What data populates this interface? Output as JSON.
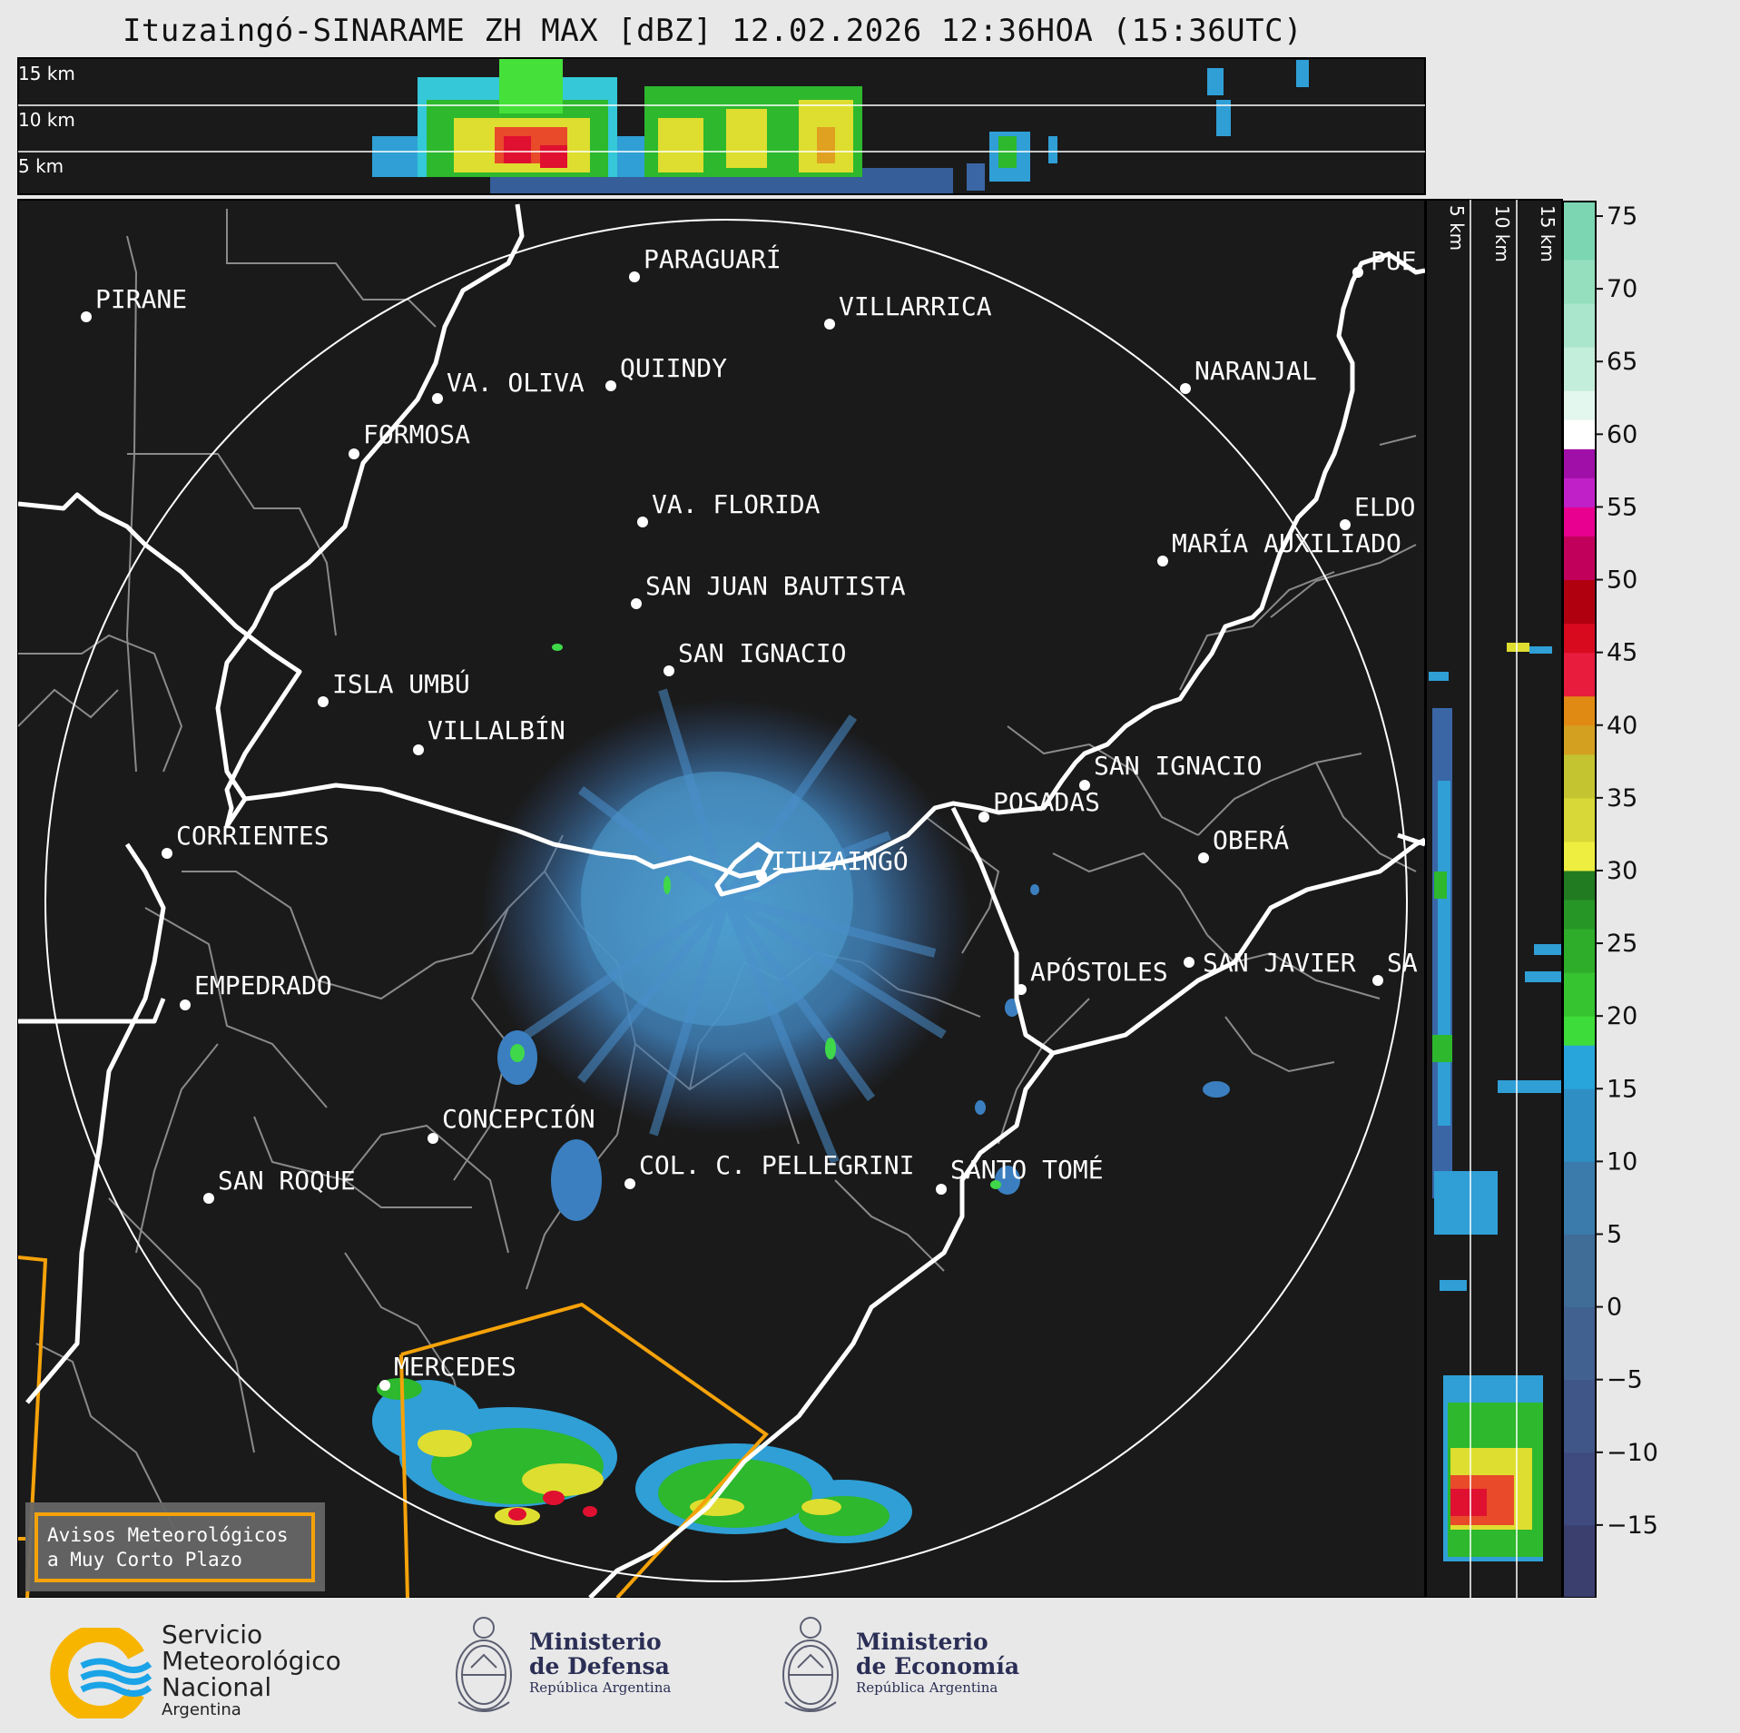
{
  "title": "Ituzaingó-SINARAME ZH MAX [dBZ] 12.02.2026 12:36HOA (15:36UTC)",
  "height_labels_top": [
    "15 km",
    "10 km",
    "5 km"
  ],
  "height_labels_side": [
    "5 km",
    "10 km",
    "15 km"
  ],
  "places": [
    {
      "name": "PARAGUARÍ"
    },
    {
      "name": "VILLARRICA"
    },
    {
      "name": "PIRANE"
    },
    {
      "name": "QUIINDY"
    },
    {
      "name": "VA. OLIVA"
    },
    {
      "name": "NARANJAL"
    },
    {
      "name": "PUE"
    },
    {
      "name": "FORMOSA"
    },
    {
      "name": "VA. FLORIDA"
    },
    {
      "name": "ELDO"
    },
    {
      "name": "MARÍA AUXILIADO"
    },
    {
      "name": "SAN JUAN BAUTISTA"
    },
    {
      "name": "SAN IGNACIO"
    },
    {
      "name": "ISLA UMBÚ"
    },
    {
      "name": "VILLALBÍN"
    },
    {
      "name": "SAN IGNACIO"
    },
    {
      "name": "POSADAS"
    },
    {
      "name": "CORRIENTES"
    },
    {
      "name": "ITUZAINGÓ"
    },
    {
      "name": "OBERÁ"
    },
    {
      "name": "EMPEDRADO"
    },
    {
      "name": "APÓSTOLES"
    },
    {
      "name": "SAN JAVIER"
    },
    {
      "name": "SA"
    },
    {
      "name": "CONCEPCIÓN"
    },
    {
      "name": "COL. C. PELLEGRINI"
    },
    {
      "name": "SANTO TOMÉ"
    },
    {
      "name": "SAN ROQUE"
    },
    {
      "name": "MERCEDES"
    }
  ],
  "colorbar": {
    "ticks": [
      "75",
      "70",
      "65",
      "60",
      "55",
      "50",
      "45",
      "40",
      "35",
      "30",
      "25",
      "20",
      "15",
      "10",
      "5",
      "0",
      "−5",
      "−10",
      "−15"
    ],
    "min": -20,
    "max": 76
  },
  "warning_box": {
    "line1": "Avisos Meteorológicos",
    "line2": "a Muy Corto Plazo"
  },
  "logos": {
    "smn": {
      "line1": "Servicio",
      "line2": "Meteorológico",
      "line3": "Nacional",
      "line4": "Argentina"
    },
    "defensa": {
      "line1": "Ministerio",
      "line2": "de Defensa",
      "line3": "República Argentina"
    },
    "economia": {
      "line1": "Ministerio",
      "line2": "de Economía",
      "line3": "República Argentina"
    }
  },
  "colors": {
    "background": "#1a1a1a",
    "border": "#ffffff",
    "warning": "#f5a20a",
    "grey_lines": "#8a8a8a"
  }
}
